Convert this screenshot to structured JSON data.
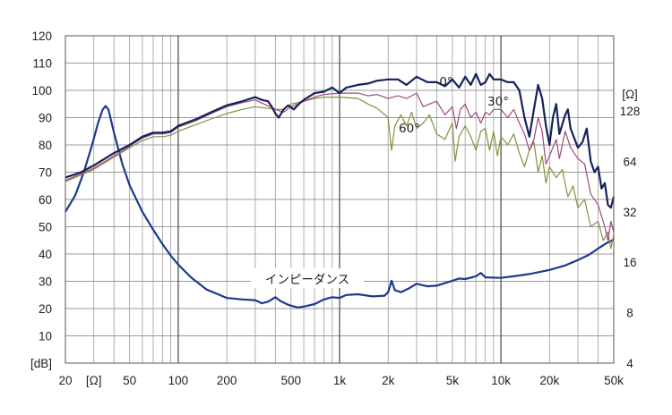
{
  "chart_data": {
    "type": "line",
    "x_scale": "log",
    "xlim": [
      20,
      50000
    ],
    "ylim": [
      0,
      120
    ],
    "x_ticks": [
      {
        "value": 20,
        "label": "20"
      },
      {
        "value": 30,
        "label": "[Ω]"
      },
      {
        "value": 50,
        "label": "50"
      },
      {
        "value": 100,
        "label": "100"
      },
      {
        "value": 200,
        "label": "200"
      },
      {
        "value": 500,
        "label": "500"
      },
      {
        "value": 1000,
        "label": "1k"
      },
      {
        "value": 2000,
        "label": "2k"
      },
      {
        "value": 5000,
        "label": "5k"
      },
      {
        "value": 10000,
        "label": "10k"
      },
      {
        "value": 20000,
        "label": "20k"
      },
      {
        "value": 50000,
        "label": "50k"
      }
    ],
    "left_ticks": [
      {
        "value": 0,
        "label": "[dB]"
      },
      {
        "value": 10,
        "label": "10"
      },
      {
        "value": 20,
        "label": "20"
      },
      {
        "value": 30,
        "label": "30"
      },
      {
        "value": 40,
        "label": "40"
      },
      {
        "value": 50,
        "label": "50"
      },
      {
        "value": 60,
        "label": "60"
      },
      {
        "value": 70,
        "label": "70"
      },
      {
        "value": 80,
        "label": "80"
      },
      {
        "value": 90,
        "label": "90"
      },
      {
        "value": 100,
        "label": "100"
      },
      {
        "value": 110,
        "label": "110"
      },
      {
        "value": 120,
        "label": "120"
      }
    ],
    "right_axis": {
      "unit": "[Ω]",
      "ticks": [
        {
          "value": 4,
          "label": "4"
        },
        {
          "value": 8,
          "label": "8"
        },
        {
          "value": 16,
          "label": "16"
        },
        {
          "value": 32,
          "label": "32"
        },
        {
          "value": 64,
          "label": "64"
        },
        {
          "value": 128,
          "label": "128"
        }
      ]
    },
    "grid": true,
    "series": [
      {
        "name": "0°",
        "color": "#16235a",
        "axis": "left",
        "points": [
          [
            20,
            68
          ],
          [
            25,
            70
          ],
          [
            30,
            72.5
          ],
          [
            40,
            77
          ],
          [
            50,
            80
          ],
          [
            60,
            83
          ],
          [
            70,
            84.5
          ],
          [
            80,
            84.5
          ],
          [
            90,
            85
          ],
          [
            100,
            87
          ],
          [
            130,
            89.5
          ],
          [
            160,
            92
          ],
          [
            200,
            94.5
          ],
          [
            250,
            96
          ],
          [
            300,
            97.5
          ],
          [
            330,
            96.5
          ],
          [
            360,
            96
          ],
          [
            380,
            94
          ],
          [
            400,
            91.5
          ],
          [
            420,
            90
          ],
          [
            450,
            93
          ],
          [
            480,
            94.5
          ],
          [
            520,
            93
          ],
          [
            560,
            95
          ],
          [
            600,
            96.5
          ],
          [
            700,
            99
          ],
          [
            800,
            99.5
          ],
          [
            900,
            101
          ],
          [
            1000,
            99
          ],
          [
            1100,
            101
          ],
          [
            1300,
            102
          ],
          [
            1500,
            102.5
          ],
          [
            1700,
            103.5
          ],
          [
            2000,
            104
          ],
          [
            2300,
            104
          ],
          [
            2600,
            102
          ],
          [
            3000,
            105
          ],
          [
            3500,
            103
          ],
          [
            4000,
            103
          ],
          [
            4500,
            101.5
          ],
          [
            5000,
            104
          ],
          [
            5500,
            101
          ],
          [
            6000,
            105
          ],
          [
            6500,
            102
          ],
          [
            7000,
            106
          ],
          [
            7500,
            102
          ],
          [
            8000,
            103
          ],
          [
            8500,
            106
          ],
          [
            9000,
            104
          ],
          [
            10000,
            104
          ],
          [
            11000,
            103
          ],
          [
            12000,
            103
          ],
          [
            13000,
            100
          ],
          [
            14000,
            90
          ],
          [
            15000,
            83
          ],
          [
            16000,
            93
          ],
          [
            17000,
            102
          ],
          [
            18000,
            97
          ],
          [
            19000,
            87
          ],
          [
            20000,
            80
          ],
          [
            21000,
            90
          ],
          [
            22000,
            95
          ],
          [
            23000,
            84
          ],
          [
            25000,
            91
          ],
          [
            26000,
            93
          ],
          [
            27000,
            86
          ],
          [
            30000,
            79
          ],
          [
            32000,
            81
          ],
          [
            34000,
            86
          ],
          [
            36000,
            74
          ],
          [
            38000,
            70
          ],
          [
            40000,
            72
          ],
          [
            42000,
            64
          ],
          [
            44000,
            66
          ],
          [
            46000,
            58
          ],
          [
            48000,
            57
          ],
          [
            50000,
            61
          ]
        ]
      },
      {
        "name": "30°",
        "color": "#a0497e",
        "axis": "left",
        "points": [
          [
            20,
            67
          ],
          [
            30,
            71.5
          ],
          [
            40,
            76
          ],
          [
            50,
            79.5
          ],
          [
            60,
            82.5
          ],
          [
            70,
            84
          ],
          [
            80,
            84
          ],
          [
            90,
            84.5
          ],
          [
            100,
            86.5
          ],
          [
            130,
            89
          ],
          [
            160,
            91.5
          ],
          [
            200,
            94
          ],
          [
            250,
            95.5
          ],
          [
            300,
            96.5
          ],
          [
            400,
            93
          ],
          [
            450,
            92
          ],
          [
            500,
            94
          ],
          [
            600,
            96
          ],
          [
            700,
            97.5
          ],
          [
            800,
            98.5
          ],
          [
            1000,
            99
          ],
          [
            1300,
            99
          ],
          [
            1500,
            98
          ],
          [
            1700,
            98.5
          ],
          [
            2000,
            97
          ],
          [
            2300,
            98
          ],
          [
            2600,
            97
          ],
          [
            3000,
            99
          ],
          [
            3300,
            94
          ],
          [
            3600,
            95
          ],
          [
            4000,
            96
          ],
          [
            4500,
            91
          ],
          [
            5000,
            94
          ],
          [
            5300,
            86
          ],
          [
            5600,
            93
          ],
          [
            6000,
            95
          ],
          [
            6500,
            90
          ],
          [
            7000,
            92
          ],
          [
            7500,
            88
          ],
          [
            8000,
            92
          ],
          [
            8500,
            91
          ],
          [
            9000,
            93
          ],
          [
            10000,
            93
          ],
          [
            11000,
            90
          ],
          [
            12000,
            93
          ],
          [
            13000,
            88
          ],
          [
            14000,
            84
          ],
          [
            15000,
            78
          ],
          [
            16000,
            82
          ],
          [
            17000,
            90
          ],
          [
            18000,
            85
          ],
          [
            19000,
            73
          ],
          [
            20000,
            76
          ],
          [
            22000,
            82
          ],
          [
            23000,
            75
          ],
          [
            25000,
            85
          ],
          [
            27000,
            79
          ],
          [
            30000,
            75
          ],
          [
            33000,
            73
          ],
          [
            36000,
            62
          ],
          [
            40000,
            58
          ],
          [
            44000,
            50
          ],
          [
            46000,
            45
          ],
          [
            48000,
            52
          ],
          [
            50000,
            48
          ]
        ]
      },
      {
        "name": "60°",
        "color": "#86903e",
        "axis": "left",
        "points": [
          [
            20,
            66.5
          ],
          [
            30,
            71
          ],
          [
            40,
            75.5
          ],
          [
            50,
            79
          ],
          [
            60,
            81.5
          ],
          [
            70,
            83
          ],
          [
            80,
            83
          ],
          [
            90,
            83.5
          ],
          [
            100,
            85
          ],
          [
            130,
            87.5
          ],
          [
            160,
            89.5
          ],
          [
            200,
            91.5
          ],
          [
            250,
            93
          ],
          [
            300,
            94
          ],
          [
            400,
            93
          ],
          [
            450,
            93
          ],
          [
            500,
            95
          ],
          [
            600,
            96
          ],
          [
            700,
            97
          ],
          [
            800,
            97.5
          ],
          [
            1000,
            97.5
          ],
          [
            1300,
            97
          ],
          [
            1500,
            95
          ],
          [
            1700,
            93.5
          ],
          [
            2000,
            90
          ],
          [
            2100,
            78
          ],
          [
            2200,
            87
          ],
          [
            2400,
            91
          ],
          [
            2600,
            87
          ],
          [
            2800,
            92
          ],
          [
            3000,
            86
          ],
          [
            3300,
            88
          ],
          [
            3600,
            91
          ],
          [
            4000,
            84
          ],
          [
            4500,
            82
          ],
          [
            5000,
            88
          ],
          [
            5200,
            74
          ],
          [
            5500,
            83
          ],
          [
            6000,
            87
          ],
          [
            6500,
            83
          ],
          [
            7000,
            78
          ],
          [
            7500,
            85
          ],
          [
            8000,
            86
          ],
          [
            8500,
            78
          ],
          [
            9000,
            85
          ],
          [
            9500,
            76
          ],
          [
            10000,
            83
          ],
          [
            11000,
            80
          ],
          [
            12000,
            84
          ],
          [
            13000,
            77
          ],
          [
            14000,
            72
          ],
          [
            15000,
            78
          ],
          [
            16000,
            81
          ],
          [
            17000,
            70
          ],
          [
            18000,
            76
          ],
          [
            19000,
            66
          ],
          [
            20000,
            72
          ],
          [
            22000,
            68
          ],
          [
            24000,
            71
          ],
          [
            26000,
            61
          ],
          [
            28000,
            65
          ],
          [
            30000,
            57
          ],
          [
            33000,
            60
          ],
          [
            36000,
            50
          ],
          [
            40000,
            52
          ],
          [
            43000,
            45
          ],
          [
            46000,
            48
          ],
          [
            48000,
            42
          ],
          [
            50000,
            47
          ]
        ]
      },
      {
        "name": "インピーダンス",
        "color": "#1c3a8c",
        "axis": "right",
        "points": [
          [
            20,
            32
          ],
          [
            23,
            40
          ],
          [
            26,
            55
          ],
          [
            29,
            78
          ],
          [
            32,
            110
          ],
          [
            34,
            130
          ],
          [
            35.5,
            137
          ],
          [
            37,
            130
          ],
          [
            40,
            95
          ],
          [
            45,
            62
          ],
          [
            50,
            46
          ],
          [
            60,
            32
          ],
          [
            70,
            25
          ],
          [
            80,
            20.5
          ],
          [
            90,
            17.5
          ],
          [
            100,
            15.5
          ],
          [
            120,
            13
          ],
          [
            150,
            11
          ],
          [
            200,
            9.8
          ],
          [
            250,
            9.6
          ],
          [
            300,
            9.5
          ],
          [
            330,
            9.1
          ],
          [
            360,
            9.3
          ],
          [
            400,
            9.9
          ],
          [
            430,
            9.4
          ],
          [
            470,
            9.0
          ],
          [
            500,
            8.8
          ],
          [
            550,
            8.6
          ],
          [
            600,
            8.7
          ],
          [
            700,
            9.0
          ],
          [
            800,
            9.6
          ],
          [
            900,
            9.9
          ],
          [
            1000,
            9.8
          ],
          [
            1100,
            10.2
          ],
          [
            1300,
            10.3
          ],
          [
            1600,
            10.0
          ],
          [
            1900,
            10.1
          ],
          [
            2000,
            10.6
          ],
          [
            2100,
            12.4
          ],
          [
            2200,
            10.9
          ],
          [
            2400,
            10.6
          ],
          [
            2700,
            11.2
          ],
          [
            3000,
            11.9
          ],
          [
            3500,
            11.5
          ],
          [
            4000,
            11.6
          ],
          [
            5000,
            12.4
          ],
          [
            5500,
            12.8
          ],
          [
            6000,
            12.7
          ],
          [
            7000,
            13.2
          ],
          [
            7500,
            13.8
          ],
          [
            8000,
            13.0
          ],
          [
            10000,
            12.9
          ],
          [
            12000,
            13.2
          ],
          [
            15000,
            13.6
          ],
          [
            20000,
            14.4
          ],
          [
            25000,
            15.3
          ],
          [
            30000,
            16.5
          ],
          [
            35000,
            17.7
          ],
          [
            40000,
            19.3
          ],
          [
            45000,
            20.8
          ],
          [
            50000,
            21.8
          ]
        ]
      }
    ],
    "annotations": [
      "0°",
      "30°",
      "60°",
      "インピーダンス"
    ]
  }
}
